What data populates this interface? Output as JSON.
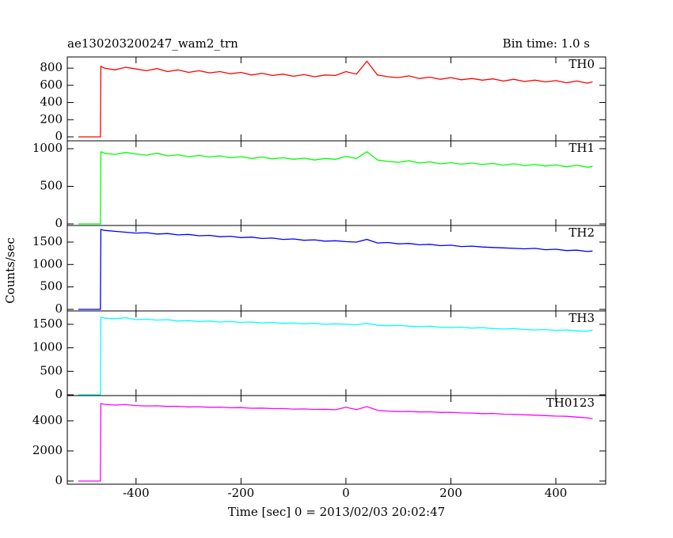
{
  "chart_data": [
    {
      "type": "line",
      "title": "ae130203200247_wam2_trn",
      "subtitle": "Bin time: 1.0 s",
      "x": [
        -510,
        -468,
        -467,
        -460,
        -440,
        -420,
        -400,
        -380,
        -360,
        -340,
        -320,
        -300,
        -280,
        -260,
        -240,
        -220,
        -200,
        -180,
        -160,
        -140,
        -120,
        -100,
        -80,
        -60,
        -40,
        -20,
        0,
        20,
        40,
        60,
        80,
        100,
        120,
        140,
        160,
        180,
        200,
        220,
        240,
        260,
        280,
        300,
        320,
        340,
        360,
        380,
        400,
        420,
        440,
        460,
        470
      ],
      "series": [
        {
          "name": "TH0",
          "color": "#ff0000",
          "values": [
            0,
            0,
            820,
            800,
            780,
            810,
            790,
            770,
            795,
            760,
            780,
            750,
            770,
            745,
            760,
            735,
            750,
            720,
            740,
            715,
            730,
            705,
            725,
            700,
            720,
            715,
            760,
            730,
            880,
            720,
            700,
            690,
            710,
            680,
            695,
            670,
            690,
            665,
            680,
            660,
            675,
            650,
            670,
            645,
            660,
            640,
            655,
            630,
            650,
            625,
            640
          ]
        }
      ],
      "xlim": [
        -531,
        495
      ],
      "xticks": [
        -400,
        -200,
        0,
        200,
        400
      ],
      "ylim": [
        -46,
        930
      ],
      "yticks": [
        0,
        200,
        400,
        600,
        800
      ]
    },
    {
      "type": "line",
      "x": [
        -510,
        -468,
        -467,
        -460,
        -440,
        -420,
        -400,
        -380,
        -360,
        -340,
        -320,
        -300,
        -280,
        -260,
        -240,
        -220,
        -200,
        -180,
        -160,
        -140,
        -120,
        -100,
        -80,
        -60,
        -40,
        -20,
        0,
        20,
        40,
        60,
        80,
        100,
        120,
        140,
        160,
        180,
        200,
        220,
        240,
        260,
        280,
        300,
        320,
        340,
        360,
        380,
        400,
        420,
        440,
        460,
        470
      ],
      "series": [
        {
          "name": "TH1",
          "color": "#00ff00",
          "values": [
            0,
            0,
            960,
            940,
            925,
            950,
            930,
            915,
            940,
            905,
            920,
            895,
            910,
            890,
            905,
            880,
            895,
            870,
            890,
            865,
            880,
            860,
            875,
            850,
            870,
            860,
            900,
            870,
            960,
            850,
            830,
            820,
            840,
            810,
            825,
            800,
            815,
            795,
            810,
            790,
            805,
            780,
            800,
            775,
            790,
            770,
            785,
            760,
            780,
            755,
            765
          ]
        }
      ],
      "xlim": [
        -531,
        495
      ],
      "xticks": [
        -400,
        -200,
        0,
        200,
        400
      ],
      "ylim": [
        -21,
        1105
      ],
      "yticks": [
        0,
        500,
        1000
      ]
    },
    {
      "type": "line",
      "y_label": "Counts/sec",
      "x": [
        -510,
        -468,
        -467,
        -460,
        -440,
        -420,
        -400,
        -380,
        -360,
        -340,
        -320,
        -300,
        -280,
        -260,
        -240,
        -220,
        -200,
        -180,
        -160,
        -140,
        -120,
        -100,
        -80,
        -60,
        -40,
        -20,
        0,
        20,
        40,
        60,
        80,
        100,
        120,
        140,
        160,
        180,
        200,
        220,
        240,
        260,
        280,
        300,
        320,
        340,
        360,
        380,
        400,
        420,
        440,
        460,
        470
      ],
      "series": [
        {
          "name": "TH2",
          "color": "#0000ff",
          "values": [
            0,
            0,
            1780,
            1760,
            1740,
            1720,
            1700,
            1710,
            1680,
            1690,
            1660,
            1670,
            1640,
            1650,
            1620,
            1630,
            1600,
            1610,
            1580,
            1590,
            1560,
            1570,
            1540,
            1550,
            1520,
            1530,
            1510,
            1500,
            1560,
            1480,
            1490,
            1460,
            1470,
            1440,
            1450,
            1420,
            1430,
            1400,
            1410,
            1390,
            1380,
            1370,
            1360,
            1350,
            1360,
            1330,
            1340,
            1310,
            1320,
            1290,
            1300
          ]
        }
      ],
      "xlim": [
        -531,
        495
      ],
      "xticks": [
        -400,
        -200,
        0,
        200,
        400
      ],
      "ylim": [
        -35,
        1870
      ],
      "yticks": [
        0,
        500,
        1000,
        1500
      ]
    },
    {
      "type": "line",
      "x": [
        -510,
        -468,
        -467,
        -460,
        -440,
        -420,
        -400,
        -380,
        -360,
        -340,
        -320,
        -300,
        -280,
        -260,
        -240,
        -220,
        -200,
        -180,
        -160,
        -140,
        -120,
        -100,
        -80,
        -60,
        -40,
        -20,
        0,
        20,
        40,
        60,
        80,
        100,
        120,
        140,
        160,
        180,
        200,
        220,
        240,
        260,
        280,
        300,
        320,
        340,
        360,
        380,
        400,
        420,
        440,
        460,
        470
      ],
      "series": [
        {
          "name": "TH3",
          "color": "#00ffff",
          "values": [
            0,
            0,
            1650,
            1630,
            1620,
            1640,
            1600,
            1610,
            1590,
            1600,
            1570,
            1580,
            1560,
            1570,
            1550,
            1560,
            1540,
            1550,
            1530,
            1540,
            1520,
            1530,
            1510,
            1520,
            1500,
            1510,
            1500,
            1490,
            1520,
            1480,
            1470,
            1480,
            1460,
            1450,
            1460,
            1440,
            1430,
            1440,
            1420,
            1430,
            1410,
            1400,
            1410,
            1390,
            1380,
            1390,
            1370,
            1380,
            1360,
            1350,
            1380
          ]
        }
      ],
      "xlim": [
        -531,
        495
      ],
      "xticks": [
        -400,
        -200,
        0,
        200,
        400
      ],
      "ylim": [
        -17,
        1785
      ],
      "yticks": [
        0,
        500,
        1000,
        1500
      ]
    },
    {
      "type": "line",
      "x_label": "Time [sec] 0 = 2013/02/03 20:02:47",
      "x": [
        -510,
        -468,
        -467,
        -460,
        -440,
        -420,
        -400,
        -380,
        -360,
        -340,
        -320,
        -300,
        -280,
        -260,
        -240,
        -220,
        -200,
        -180,
        -160,
        -140,
        -120,
        -100,
        -80,
        -60,
        -40,
        -20,
        0,
        20,
        40,
        60,
        80,
        100,
        120,
        140,
        160,
        180,
        200,
        220,
        240,
        260,
        280,
        300,
        320,
        340,
        360,
        380,
        400,
        420,
        440,
        460,
        470
      ],
      "series": [
        {
          "name": "TH0123",
          "color": "#ff00ff",
          "values": [
            0,
            0,
            5150,
            5100,
            5050,
            5080,
            5020,
            4990,
            5000,
            4960,
            4970,
            4930,
            4940,
            4900,
            4910,
            4870,
            4880,
            4840,
            4850,
            4810,
            4820,
            4780,
            4790,
            4760,
            4770,
            4740,
            4900,
            4750,
            4950,
            4700,
            4650,
            4620,
            4630,
            4590,
            4600,
            4560,
            4570,
            4530,
            4520,
            4480,
            4490,
            4450,
            4440,
            4400,
            4380,
            4350,
            4320,
            4300,
            4250,
            4200,
            4150
          ]
        }
      ],
      "xlim": [
        -531,
        495
      ],
      "xticks": [
        -400,
        -200,
        0,
        200,
        400
      ],
      "ylim": [
        -210,
        5680
      ],
      "yticks": [
        0,
        2000,
        4000
      ]
    }
  ]
}
